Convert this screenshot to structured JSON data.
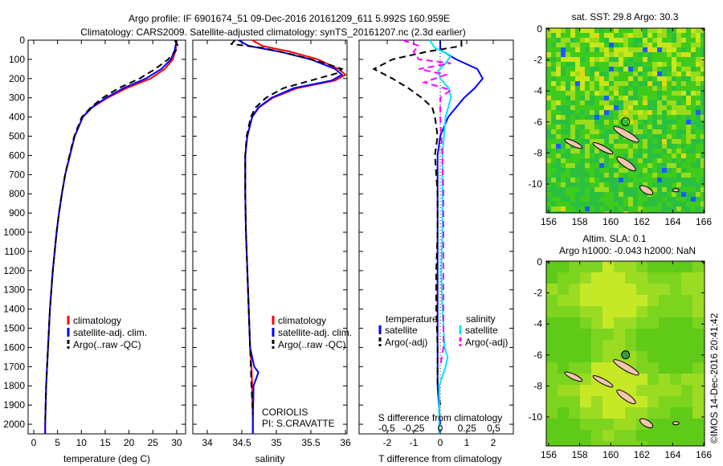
{
  "title_line1": "Argo profile: IF 6901674_51 09-Dec-2016 20161209_611 5.992S 160.959E",
  "title_line2": "Climatology: CARS2009. Satellite-adjusted climatology: synTS_20161207.nc (2.3d earlier)",
  "side_label": "©IMOS 14-Dec-2016 20:41:42",
  "chart_data": [
    {
      "type": "line",
      "id": "temperature",
      "xlabel": "temperature (deg C)",
      "ylabel": "",
      "xlim": [
        -2,
        31
      ],
      "ylim": [
        2050,
        0
      ],
      "xticks": [
        0,
        5,
        10,
        15,
        20,
        25,
        30
      ],
      "yticks": [
        0,
        100,
        200,
        300,
        400,
        500,
        600,
        700,
        800,
        900,
        1000,
        1100,
        1200,
        1300,
        1400,
        1500,
        1600,
        1700,
        1800,
        1900,
        2000
      ],
      "legend": [
        "climatology",
        "satellite-adj. clim.",
        "Argo(..raw -QC)"
      ],
      "series": [
        {
          "name": "climatology",
          "color": "#ff0000",
          "dash": "",
          "depth": [
            0,
            50,
            100,
            150,
            200,
            250,
            300,
            350,
            400,
            500,
            600,
            700,
            800,
            900,
            1000,
            1200,
            1400,
            1600,
            1800,
            2000,
            2050
          ],
          "values": [
            30,
            29.8,
            29.2,
            27.5,
            24.5,
            19.5,
            15.5,
            12.3,
            10.3,
            8.6,
            7.6,
            6.6,
            5.9,
            5.3,
            4.8,
            4.0,
            3.4,
            3.0,
            2.6,
            2.4,
            2.4
          ]
        },
        {
          "name": "satellite-adj. clim.",
          "color": "#0000ff",
          "dash": "",
          "depth": [
            0,
            50,
            100,
            150,
            200,
            250,
            300,
            350,
            400,
            500,
            600,
            700,
            800,
            900,
            1000,
            1200,
            1400,
            1600,
            1800,
            2000,
            2050
          ],
          "values": [
            30,
            29.6,
            28.8,
            26.8,
            23.5,
            18.8,
            15.2,
            12.2,
            10.3,
            8.6,
            7.6,
            6.6,
            5.9,
            5.3,
            4.8,
            4.0,
            3.4,
            3.0,
            2.6,
            2.4,
            2.4
          ]
        },
        {
          "name": "Argo(..raw -QC)",
          "color": "#000000",
          "dash": "8,5",
          "depth": [
            0,
            30,
            60,
            100,
            150,
            200,
            250,
            300,
            350,
            400,
            500,
            600,
            700,
            800,
            900,
            1000,
            1200,
            1400,
            1600,
            1800,
            2000
          ],
          "values": [
            29.6,
            30.3,
            29.7,
            28.2,
            25.5,
            22.2,
            17.8,
            14.5,
            12,
            10.1,
            8.5,
            7.5,
            6.6,
            5.9,
            5.3,
            4.8,
            4.0,
            3.4,
            3.0,
            2.6,
            2.4
          ]
        }
      ]
    },
    {
      "type": "line",
      "id": "salinity",
      "xlabel": "salinity",
      "xlim": [
        33.8,
        36.1
      ],
      "ylim": [
        2050,
        0
      ],
      "xticks": [
        34,
        34.5,
        35,
        35.5,
        36
      ],
      "legend": [
        "climatology",
        "satellite-adj. clim.",
        "Argo(..raw -QC)"
      ],
      "annotation": [
        "CORIOLIS",
        "PI: S.CRAVATTE"
      ],
      "series": [
        {
          "name": "climatology",
          "color": "#ff0000",
          "dash": "",
          "depth": [
            0,
            30,
            60,
            100,
            150,
            180,
            210,
            250,
            300,
            350,
            400,
            500,
            600,
            800,
            1000,
            1200,
            1400,
            1600,
            1700,
            1800,
            2000,
            2050
          ],
          "values": [
            34.65,
            34.8,
            35.2,
            35.6,
            35.9,
            36,
            35.85,
            35.3,
            34.95,
            34.75,
            34.65,
            34.58,
            34.55,
            34.55,
            34.56,
            34.58,
            34.6,
            34.62,
            34.64,
            34.65,
            34.66,
            34.66
          ]
        },
        {
          "name": "satellite-adj. clim.",
          "color": "#0000ff",
          "dash": "",
          "depth": [
            0,
            30,
            60,
            100,
            150,
            180,
            210,
            250,
            300,
            350,
            400,
            500,
            600,
            800,
            1000,
            1200,
            1400,
            1600,
            1700,
            1730,
            1800,
            2000,
            2050
          ],
          "values": [
            34.45,
            34.6,
            35.05,
            35.5,
            35.85,
            35.95,
            35.8,
            35.25,
            34.93,
            34.74,
            34.65,
            34.58,
            34.55,
            34.55,
            34.56,
            34.58,
            34.6,
            34.62,
            34.68,
            34.74,
            34.67,
            34.66,
            34.66
          ]
        },
        {
          "name": "Argo(..raw -QC)",
          "color": "#000000",
          "dash": "8,5",
          "depth": [
            0,
            20,
            40,
            80,
            120,
            150,
            170,
            200,
            250,
            300,
            350,
            400,
            500,
            600,
            800,
            1000,
            1200,
            1400,
            1600,
            1800,
            1950
          ],
          "values": [
            34.4,
            34.35,
            34.8,
            35.3,
            35.7,
            35.95,
            35.9,
            35.6,
            35.1,
            34.85,
            34.7,
            34.63,
            34.57,
            34.55,
            34.55,
            34.56,
            34.58,
            34.6,
            34.62,
            34.64,
            34.66
          ]
        }
      ]
    },
    {
      "type": "line",
      "id": "difference",
      "xlabel": "T difference from climatology",
      "x2label": "S difference from climatology",
      "xlim": [
        -3,
        3
      ],
      "ylim": [
        2050,
        0
      ],
      "xticks": [
        -2,
        -1,
        0,
        1,
        2
      ],
      "x2ticks": [
        -0.5,
        -0.25,
        0,
        0.25,
        0.5
      ],
      "x2ticklabels": [
        "-0.5",
        "-0.25",
        "0",
        "0.25",
        "0.5"
      ],
      "legend_headers": [
        "temperature",
        "salinity"
      ],
      "legend": [
        "satellite",
        "Argo(-adj)",
        "satellite",
        "Argo(-adj)"
      ],
      "series": [
        {
          "name": "temperature satellite",
          "axis": "T",
          "color": "#0000ff",
          "dash": "",
          "depth": [
            0,
            50,
            100,
            150,
            200,
            250,
            300,
            400,
            500,
            600,
            800,
            1000,
            1200,
            1400,
            1600,
            1700,
            1800,
            2000
          ],
          "values": [
            0,
            0,
            0.6,
            1.4,
            1.6,
            1.3,
            0.9,
            0.3,
            0,
            -0.1,
            -0.1,
            -0.1,
            -0.1,
            -0.1,
            -0.1,
            -0.1,
            -0.1,
            0
          ]
        },
        {
          "name": "temperature Argo(-adj)",
          "axis": "T",
          "color": "#000000",
          "dash": "8,5",
          "depth": [
            0,
            30,
            60,
            100,
            150,
            200,
            250,
            300,
            350,
            400,
            500,
            600,
            800,
            1000,
            1200,
            1400,
            1600,
            1800,
            1900
          ],
          "values": [
            0.8,
            0.8,
            -0.5,
            -1.8,
            -2.5,
            -1.8,
            -1.2,
            -0.7,
            -0.3,
            -0.2,
            -0.1,
            -0.2,
            -0.1,
            -0.1,
            -0.15,
            -0.15,
            -0.1,
            -0.1,
            0
          ]
        },
        {
          "name": "salinity satellite",
          "axis": "S",
          "color": "#00e5ff",
          "dash": "",
          "depth": [
            0,
            40,
            80,
            120,
            160,
            200,
            250,
            300,
            400,
            600,
            800,
            1000,
            1200,
            1400,
            1600,
            1650,
            1700,
            1800,
            2050
          ],
          "values": [
            -0.1,
            -0.05,
            0.1,
            0.05,
            -0.02,
            0,
            0.08,
            0.1,
            0.05,
            0.02,
            0.02,
            0.02,
            0.01,
            0.02,
            0.04,
            0.07,
            0.05,
            -0.01,
            -0.01
          ]
        },
        {
          "name": "salinity Argo(-adj)",
          "axis": "S",
          "color": "#ff00ff",
          "dash": "8,5",
          "depth": [
            0,
            30,
            60,
            100,
            120,
            150,
            180,
            220,
            260,
            300,
            400,
            600,
            800,
            1000,
            1200,
            1400,
            1600,
            1700
          ],
          "values": [
            -0.35,
            -0.2,
            -0.25,
            -0.2,
            0.1,
            -0.2,
            0.05,
            -0.15,
            0.1,
            0,
            0,
            0.02,
            0.03,
            0.03,
            0.03,
            0.03,
            0.03,
            0
          ]
        }
      ]
    },
    {
      "type": "heatmap",
      "id": "sst_map",
      "title": "sat. SST: 29.8 Argo: 30.3",
      "xlim": [
        156,
        166
      ],
      "ylim": [
        -11.8,
        0
      ],
      "xticks": [
        156,
        158,
        160,
        162,
        164,
        166
      ],
      "yticks": [
        0,
        -2,
        -4,
        -6,
        -8,
        -10
      ],
      "marker": {
        "lon": 160.959,
        "lat": -5.992
      }
    },
    {
      "type": "heatmap",
      "id": "sla_map",
      "title_line1": "Altim. SLA: 0.1",
      "title_line2": "Argo h1000: -0.043 h2000: NaN",
      "xlim": [
        156,
        166
      ],
      "ylim": [
        -11.8,
        0
      ],
      "xticks": [
        156,
        158,
        160,
        162,
        164,
        166
      ],
      "yticks": [
        0,
        -2,
        -4,
        -6,
        -8,
        -10
      ],
      "marker": {
        "lon": 160.959,
        "lat": -5.992
      }
    }
  ]
}
